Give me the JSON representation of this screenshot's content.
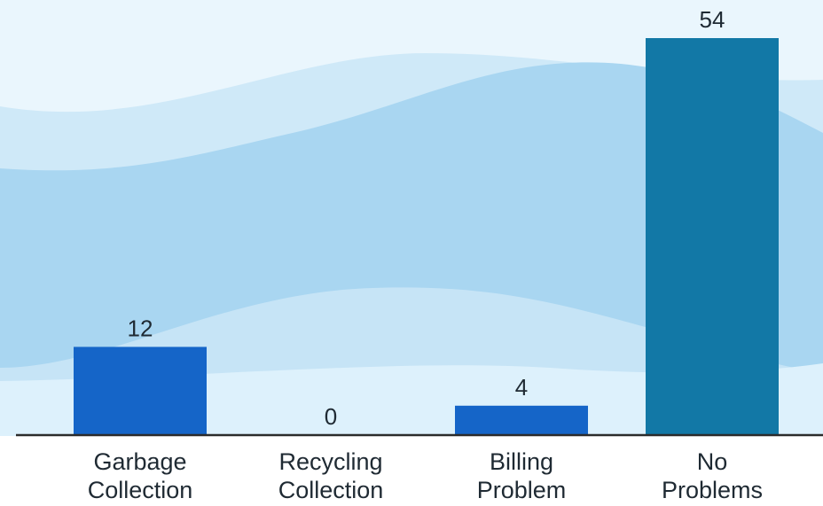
{
  "chart_data": {
    "type": "bar",
    "categories": [
      [
        "Garbage",
        "Collection"
      ],
      [
        "Recycling",
        "Collection"
      ],
      [
        "Billing",
        "Problem"
      ],
      [
        "No",
        "Problems"
      ]
    ],
    "values": [
      12,
      0,
      4,
      54
    ],
    "data_labels": [
      "12",
      "0",
      "4",
      "54"
    ],
    "ylim": [
      0,
      54
    ],
    "grid": false,
    "legend": "none",
    "bar_colors": [
      "#1565c8",
      "#1565c8",
      "#1565c8",
      "#1278a6"
    ],
    "axis_color": "#2b2b2b"
  },
  "background": {
    "colors": [
      "#eaf6fd",
      "#cfe9f8",
      "#a9d6f1",
      "#c6e4f6",
      "#ddf1fc"
    ]
  }
}
